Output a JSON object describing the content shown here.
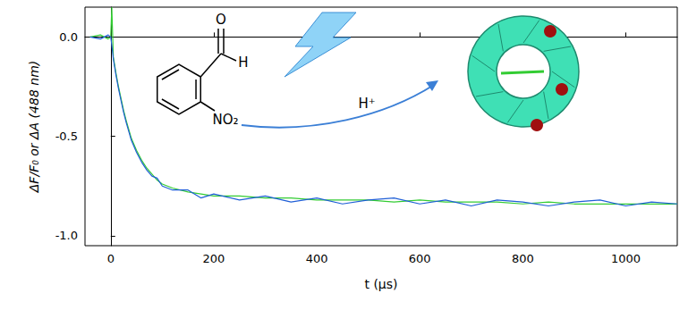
{
  "chart_data": {
    "type": "line",
    "x_label": "t (μs)",
    "y_label": "ΔF/F₀ or ΔA (488 nm)",
    "x": [
      -40,
      -20,
      -5,
      0,
      2,
      5,
      10,
      15,
      20,
      25,
      30,
      40,
      50,
      60,
      70,
      80,
      90,
      100,
      120,
      150,
      175,
      200,
      250,
      300,
      350,
      400,
      450,
      500,
      550,
      600,
      650,
      700,
      750,
      800,
      850,
      900,
      950,
      1000,
      1050,
      1100
    ],
    "series": [
      {
        "color": "#33cc33",
        "values": [
          0.0,
          0.01,
          -0.01,
          0.0,
          0.15,
          -0.1,
          -0.18,
          -0.25,
          -0.31,
          -0.37,
          -0.42,
          -0.51,
          -0.57,
          -0.62,
          -0.66,
          -0.69,
          -0.72,
          -0.74,
          -0.76,
          -0.78,
          -0.79,
          -0.8,
          -0.8,
          -0.81,
          -0.81,
          -0.82,
          -0.82,
          -0.82,
          -0.83,
          -0.82,
          -0.83,
          -0.83,
          -0.83,
          -0.84,
          -0.83,
          -0.84,
          -0.84,
          -0.84,
          -0.84,
          -0.84
        ]
      },
      {
        "color": "#1f5fd6",
        "values": [
          0.0,
          -0.01,
          0.01,
          0.0,
          -0.04,
          -0.11,
          -0.19,
          -0.26,
          -0.32,
          -0.38,
          -0.43,
          -0.52,
          -0.58,
          -0.63,
          -0.67,
          -0.7,
          -0.71,
          -0.75,
          -0.77,
          -0.77,
          -0.81,
          -0.79,
          -0.82,
          -0.8,
          -0.83,
          -0.81,
          -0.84,
          -0.82,
          -0.81,
          -0.84,
          -0.82,
          -0.85,
          -0.82,
          -0.83,
          -0.85,
          -0.83,
          -0.82,
          -0.85,
          -0.83,
          -0.84
        ]
      }
    ],
    "xlim": [
      -50,
      1100
    ],
    "xticks": [
      0,
      200,
      400,
      600,
      800,
      1000
    ],
    "ylim": [
      -1.05,
      0.15
    ],
    "yticks": [
      {
        "value": 0,
        "label": "0.0"
      },
      -0.5,
      {
        "value": -1,
        "label": "-1.0"
      }
    ],
    "grid": false,
    "annotations": [
      "O",
      "H",
      "NO₂",
      "H⁺"
    ]
  }
}
